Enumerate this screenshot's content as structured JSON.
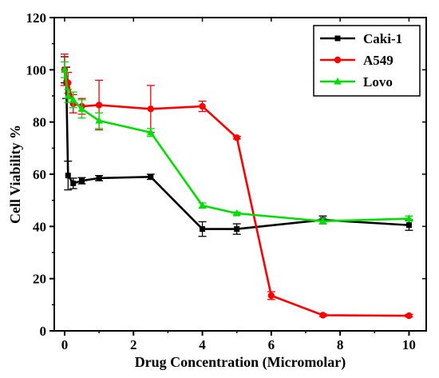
{
  "chart_data": {
    "type": "line",
    "xlabel": "Drug Concentration (Micromolar)",
    "ylabel": "Cell Viability %",
    "xlim": [
      -0.3,
      10.5
    ],
    "ylim": [
      0,
      120
    ],
    "xticks": [
      0,
      2,
      4,
      6,
      8,
      10
    ],
    "yticks": [
      0,
      20,
      40,
      60,
      80,
      100,
      120
    ],
    "grid": false,
    "legend_position": "top-right",
    "series": [
      {
        "name": "Caki-1",
        "color": "#000000",
        "marker": "square",
        "x": [
          0,
          0.05,
          0.1,
          0.25,
          0.5,
          1,
          2.5,
          4,
          5,
          7.5,
          10
        ],
        "y": [
          100,
          95,
          59.5,
          56.5,
          57.5,
          58.5,
          59,
          39,
          39,
          42.5,
          40.5
        ],
        "err": [
          5,
          6,
          5.5,
          2,
          1.2,
          1,
          1,
          2.8,
          2,
          1.5,
          2
        ]
      },
      {
        "name": "A549",
        "color": "#ff0000",
        "marker": "circle",
        "x": [
          0,
          0.1,
          0.25,
          0.5,
          1,
          2.5,
          4,
          5,
          6,
          7.5,
          10
        ],
        "y": [
          100,
          95,
          87,
          86,
          86.5,
          85,
          86,
          74,
          13.5,
          6,
          5.8
        ],
        "err": [
          6,
          4,
          3.5,
          3,
          9.5,
          9,
          2,
          0.5,
          1.5,
          0.5,
          0.5
        ]
      },
      {
        "name": "Lovo",
        "color": "#00e000",
        "marker": "triangle",
        "x": [
          0,
          0.1,
          0.25,
          0.5,
          1,
          2.5,
          4,
          5,
          7.5,
          10
        ],
        "y": [
          100,
          90,
          88.5,
          85,
          80.5,
          76,
          48,
          45,
          42,
          43
        ],
        "err": [
          3,
          2.5,
          3,
          3.5,
          3,
          1.5,
          1,
          0.5,
          1,
          1
        ]
      }
    ]
  }
}
